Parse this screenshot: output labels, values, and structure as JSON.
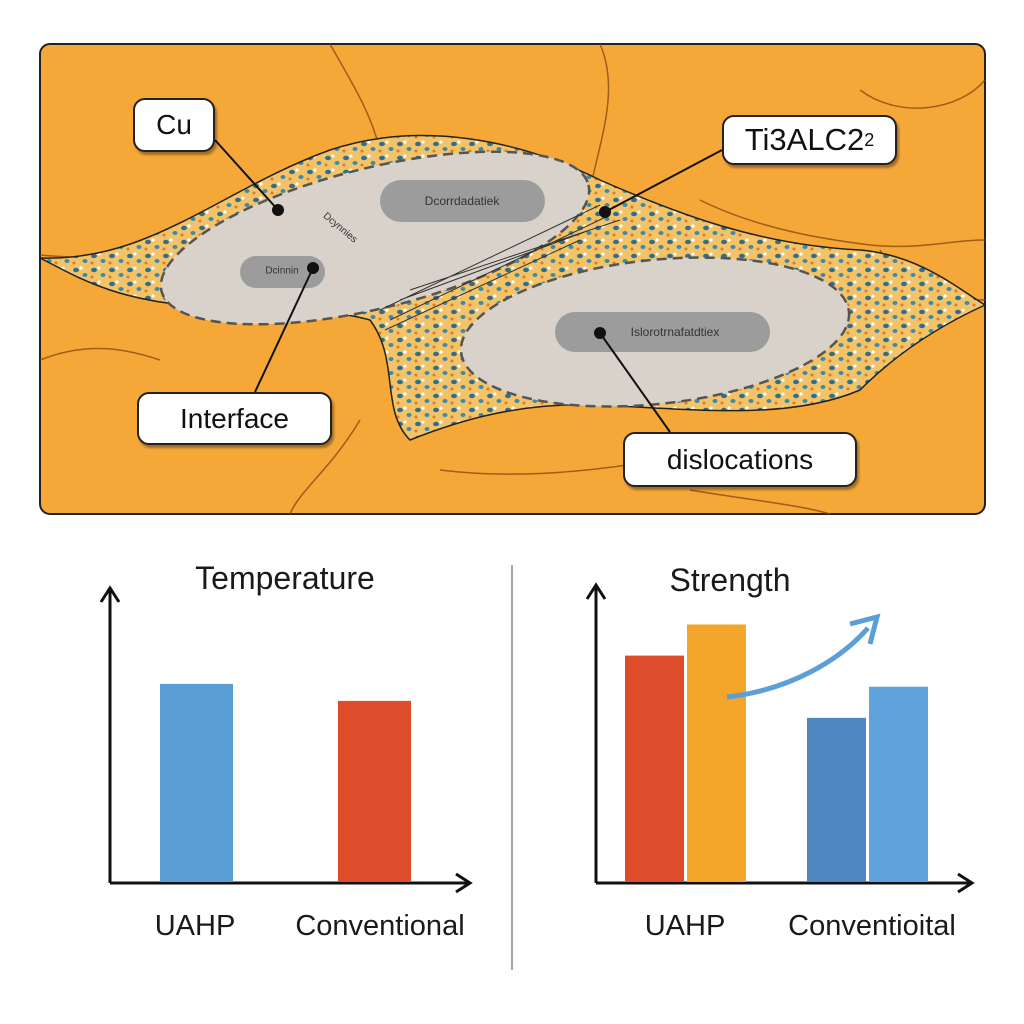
{
  "micrograph": {
    "labels": {
      "cu": "Cu",
      "max_phase": "Ti3ALC2",
      "max_phase_sub": "2",
      "interface": "Interface",
      "dislocations": "dislocations"
    },
    "grain_text": {
      "left_large": "Dcorrdadatiek",
      "left_small": "Dcinnin",
      "left_diag": "Dcynnies",
      "right": "Islorotrnafatdtiex"
    },
    "colors": {
      "matrix": "#f5a838",
      "grain": "#d6d0c8",
      "grain_core": "#9a9a9a",
      "particle": "#2e6f8e"
    }
  },
  "chart_data": [
    {
      "type": "bar",
      "title": "Temperature",
      "categories": [
        "UAHP",
        "Conventional"
      ],
      "values": [
        70,
        64
      ],
      "colors": [
        "#5a9fd6",
        "#dd4d2c"
      ],
      "ylim": [
        0,
        100
      ],
      "xlabel": "",
      "ylabel": "",
      "grid": false
    },
    {
      "type": "bar",
      "title": "Strength",
      "categories": [
        "UAHP",
        "Conventioital"
      ],
      "series": [
        {
          "values": [
            80,
            58
          ],
          "colors": [
            "#dd4d2c",
            "#4f87c0"
          ]
        },
        {
          "values": [
            91,
            69
          ],
          "colors": [
            "#f4a62a",
            "#5fa3dc"
          ]
        }
      ],
      "ylim": [
        0,
        100
      ],
      "annotation": "increase-arrow",
      "xlabel": "",
      "ylabel": "",
      "grid": false
    }
  ]
}
